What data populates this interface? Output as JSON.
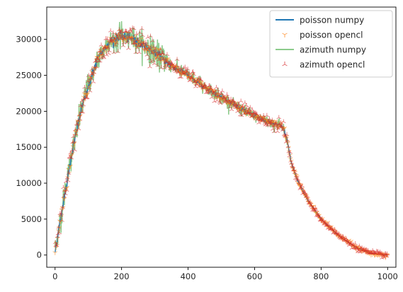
{
  "chart_data": {
    "type": "line",
    "title": "",
    "xlabel": "",
    "ylabel": "",
    "xlim": [
      -25,
      1025
    ],
    "ylim": [
      -1700,
      34500
    ],
    "x_ticks": [
      0,
      200,
      400,
      600,
      800,
      1000
    ],
    "y_ticks": [
      0,
      5000,
      10000,
      15000,
      20000,
      25000,
      30000
    ],
    "x_tick_labels": [
      "0",
      "200",
      "400",
      "600",
      "800",
      "1000"
    ],
    "y_tick_labels": [
      "0",
      "5000",
      "10000",
      "15000",
      "20000",
      "25000",
      "30000"
    ],
    "grid": false,
    "legend_position": "top-right",
    "x_range": [
      0,
      1000
    ],
    "profile_knots": {
      "x": [
        0,
        20,
        50,
        80,
        100,
        130,
        160,
        200,
        240,
        280,
        320,
        360,
        400,
        440,
        480,
        520,
        560,
        600,
        640,
        680,
        690,
        700,
        710,
        730,
        760,
        800,
        850,
        900,
        950,
        1000
      ],
      "y": [
        500,
        6000,
        14000,
        20500,
        23500,
        27500,
        29500,
        30500,
        30000,
        28800,
        27500,
        26000,
        25000,
        23700,
        22500,
        21400,
        20300,
        19300,
        18600,
        18000,
        17200,
        15500,
        12900,
        10300,
        7600,
        5000,
        2800,
        1200,
        200,
        0
      ]
    },
    "series": [
      {
        "name": "poisson numpy",
        "style": "line",
        "color": "#1f77b4"
      },
      {
        "name": "poisson opencl",
        "style": "tri_down",
        "color": "#ff7f0e"
      },
      {
        "name": "azimuth numpy",
        "style": "line",
        "color": "#2ca02c"
      },
      {
        "name": "azimuth opencl",
        "style": "tri_up",
        "color": "#d62728"
      }
    ]
  },
  "colors": {
    "axes": "#000000",
    "tick_text": "#262626",
    "legend_border": "#cccccc"
  }
}
